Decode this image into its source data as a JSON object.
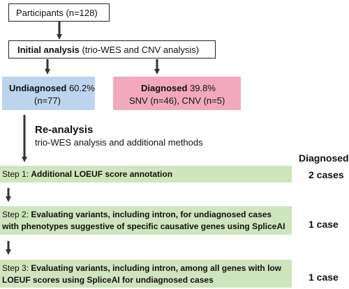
{
  "participants": "Participants (n=128)",
  "initial": {
    "bold": "Initial analysis",
    "rest": " (trio-WES and CNV analysis)"
  },
  "undiagnosed": {
    "bold": "Undiagnosed",
    "pct": " 60.2%",
    "n": "(n=77)"
  },
  "diagnosed_box": {
    "bold": "Diagnosed",
    "pct": " 39.8%",
    "detail": "SNV (n=46), CNV (n=5)"
  },
  "reanalysis": {
    "title": "Re-analysis",
    "subtitle": "trio-WES analysis and additional methods"
  },
  "diagnosed_header": "Diagnosed",
  "steps": [
    {
      "prefix": "Step 1: ",
      "line1": "Additional LOEUF score annotation",
      "line2": "",
      "result": "2 cases"
    },
    {
      "prefix": "Step 2: ",
      "line1": "Evaluating variants, including intron, for undiagnosed cases",
      "line2": "with phenotypes suggestive of specific causative genes using SpliceAI",
      "result": "1 case"
    },
    {
      "prefix": "Step 3: ",
      "line1": "Evaluating variants, including intron, among all genes with low",
      "line2": "LOEUF scores using SpliceAI for undiagnosed cases",
      "result": "1 case"
    }
  ],
  "colors": {
    "undiagnosed_fill": "#bcd4ee",
    "diagnosed_fill": "#f2a9bf",
    "step_fill": "#cfe5bd",
    "arrow": "#333333"
  }
}
